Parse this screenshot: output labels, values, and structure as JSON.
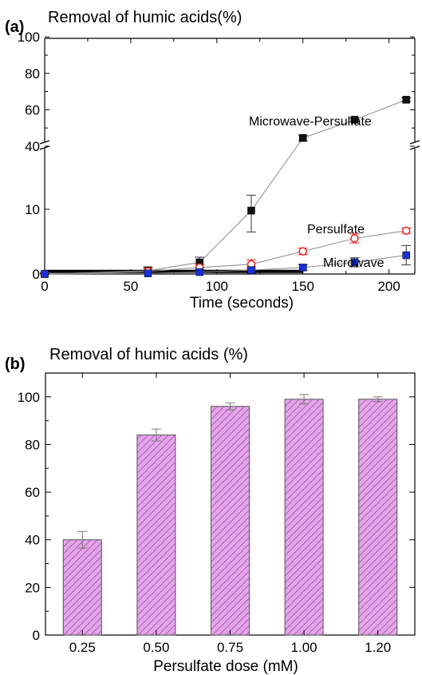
{
  "panels": [
    {
      "label": "(a)",
      "title": "Removal of humic acids(%)",
      "chart_data": {
        "type": "line",
        "xlabel": "Time (seconds)",
        "ylabel": "",
        "xlim": [
          0,
          215
        ],
        "x_ticks": [
          "0",
          "50",
          "100",
          "150",
          "200"
        ],
        "y_ticks": [
          "0",
          "10",
          "40",
          "60",
          "80",
          "100"
        ],
        "y_axis_break": "between 10 and 40",
        "colors": {
          "Microwave-Persulfate": "#111111",
          "Persulfate": "#e8231c",
          "Microwave": "#1830d8",
          "connector": "#888888"
        },
        "series": [
          {
            "name": "Microwave-Persulfate",
            "marker": "filled-square",
            "x": [
              0,
              60,
              90,
              120,
              150,
              180,
              210
            ],
            "y": [
              0,
              0.5,
              1.8,
              9.8,
              44.5,
              54.5,
              65.5
            ],
            "err": [
              0.2,
              0.6,
              0.8,
              3.3,
              1.5,
              1,
              1
            ]
          },
          {
            "name": "Persulfate",
            "marker": "open-circle",
            "x": [
              0,
              60,
              90,
              120,
              150,
              180,
              210
            ],
            "y": [
              0,
              0.4,
              1,
              1.5,
              3.5,
              5.5,
              6.7
            ],
            "err": [
              0.2,
              0.5,
              0.5,
              0.7,
              0.5,
              0.7,
              0.4
            ]
          },
          {
            "name": "Microwave",
            "marker": "filled-square",
            "x": [
              0,
              60,
              90,
              120,
              150,
              180,
              210
            ],
            "y": [
              0,
              0.1,
              0.3,
              0.6,
              1,
              1.8,
              2.9
            ],
            "err": [
              0.1,
              0.3,
              0.4,
              0.5,
              0.4,
              0.7,
              1.5
            ]
          }
        ],
        "annotations": [
          "Microwave-Persulfate",
          "Persulfate",
          "Microwave"
        ]
      }
    },
    {
      "label": "(b)",
      "title": "Removal of humic acids (%)",
      "chart_data": {
        "type": "bar",
        "xlabel": "Persulfate dose (mM)",
        "ylabel": "",
        "categories": [
          "0.25",
          "0.50",
          "0.75",
          "1.00",
          "1.20"
        ],
        "values": [
          40,
          84,
          96,
          99,
          99
        ],
        "errors": [
          3.5,
          2.5,
          1.5,
          2,
          1
        ],
        "ylim": [
          0,
          110
        ],
        "y_ticks": [
          "0",
          "20",
          "40",
          "60",
          "80",
          "100"
        ],
        "bar_color": "#e2a6e8",
        "hatch_color": "#a64aa8",
        "grid": false
      }
    }
  ]
}
